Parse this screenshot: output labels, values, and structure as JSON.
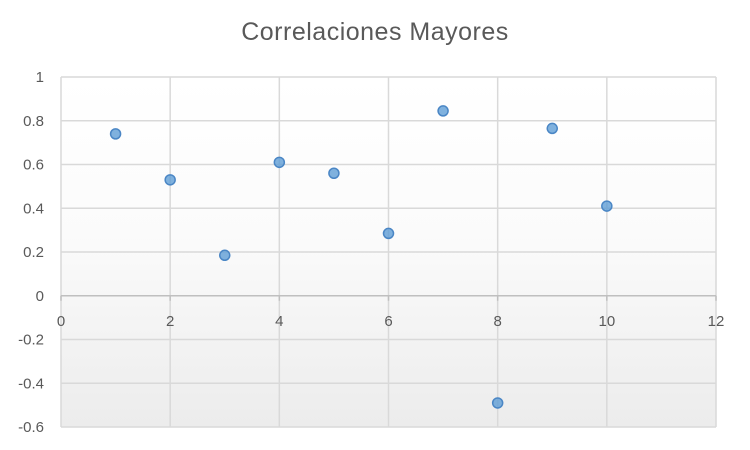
{
  "chart_data": {
    "type": "scatter",
    "title": "Correlaciones  Mayores",
    "xlabel": "",
    "ylabel": "",
    "xlim": [
      0,
      12
    ],
    "ylim": [
      -0.6,
      1
    ],
    "x_ticks": [
      "0",
      "2",
      "4",
      "6",
      "8",
      "10",
      "12"
    ],
    "y_ticks": [
      "1",
      "0.8",
      "0.6",
      "0.4",
      "0.2",
      "0",
      "-0.2",
      "-0.4",
      "-0.6"
    ],
    "grid": true,
    "legend": "none",
    "series": [
      {
        "points": [
          {
            "x": 1,
            "y": 0.74
          },
          {
            "x": 2,
            "y": 0.53
          },
          {
            "x": 3,
            "y": 0.185
          },
          {
            "x": 4,
            "y": 0.61
          },
          {
            "x": 5,
            "y": 0.56
          },
          {
            "x": 6,
            "y": 0.285
          },
          {
            "x": 7,
            "y": 0.845
          },
          {
            "x": 8,
            "y": -0.49
          },
          {
            "x": 9,
            "y": 0.765
          },
          {
            "x": 10,
            "y": 0.41
          }
        ],
        "color": "#5b9bd5"
      }
    ]
  }
}
